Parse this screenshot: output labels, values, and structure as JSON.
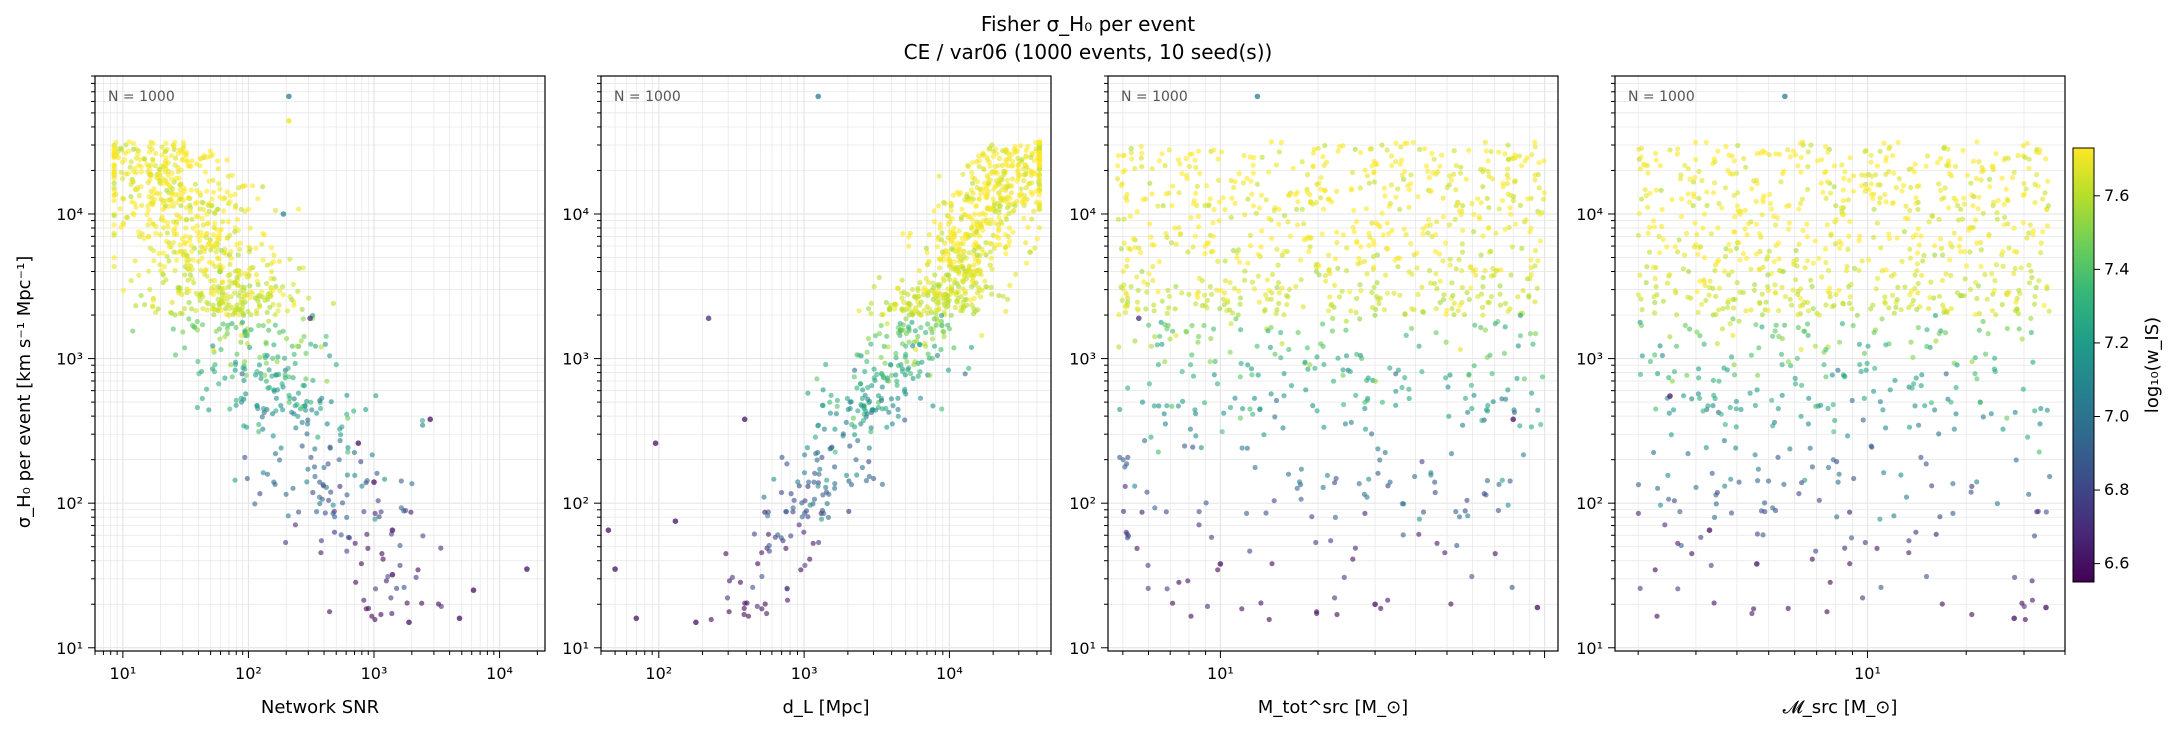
{
  "figure": {
    "title_line1": "Fisher σ_H₀ per event",
    "title_line2": "CE / var06  (1000 events, 10 seed(s))"
  },
  "colors": {
    "viridis": [
      "#440154",
      "#482878",
      "#3e4989",
      "#31688e",
      "#26828e",
      "#1f9e89",
      "#35b779",
      "#6ece58",
      "#b5de2b",
      "#fde725"
    ],
    "grid": "#e6e6e6",
    "marker_alpha": 0.6
  },
  "colorbar": {
    "label": "log₁₀(w_IS)",
    "range": [
      6.55,
      7.73
    ],
    "ticks": [
      6.6,
      6.8,
      7.0,
      7.2,
      7.4,
      7.6
    ]
  },
  "chart_data": [
    {
      "type": "scatter",
      "xlabel": "Network SNR",
      "ylabel": "σ_H₀ per event [km s⁻¹ Mpc⁻¹]",
      "annotation": "N = 1000",
      "xscale": "log",
      "yscale": "log",
      "xlim": [
        6,
        23000
      ],
      "ylim": [
        9.5,
        90000
      ],
      "xticks": [
        10,
        100,
        1000,
        10000
      ],
      "xtick_labels": [
        "10¹",
        "10²",
        "10³",
        "10⁴"
      ],
      "yticks": [
        10,
        100,
        1000,
        10000
      ],
      "ytick_labels": [
        "10¹",
        "10²",
        "10³",
        "10⁴"
      ],
      "grid": true,
      "highlight_points": [
        {
          "x": 210,
          "y": 65000,
          "c": 7.05
        },
        {
          "x": 2800,
          "y": 380,
          "c": 6.6
        },
        {
          "x": 16500,
          "y": 35,
          "c": 6.6
        },
        {
          "x": 6200,
          "y": 25,
          "c": 6.6
        },
        {
          "x": 4800,
          "y": 16,
          "c": 6.6
        },
        {
          "x": 1900,
          "y": 15,
          "c": 6.6
        },
        {
          "x": 1400,
          "y": 65,
          "c": 6.6
        },
        {
          "x": 1400,
          "y": 32,
          "c": 6.6
        },
        {
          "x": 1000,
          "y": 140,
          "c": 6.6
        },
        {
          "x": 750,
          "y": 260,
          "c": 6.6
        },
        {
          "x": 310,
          "y": 1900,
          "c": 6.7
        },
        {
          "x": 190,
          "y": 10000,
          "c": 7.1
        },
        {
          "x": 210,
          "y": 44000,
          "c": 7.7
        }
      ]
    },
    {
      "type": "scatter",
      "xlabel": "d_L [Mpc]",
      "annotation": "N = 1000",
      "xscale": "log",
      "yscale": "log",
      "xlim": [
        40,
        50000
      ],
      "ylim": [
        9.5,
        90000
      ],
      "xticks": [
        100,
        1000,
        10000
      ],
      "xtick_labels": [
        "10²",
        "10³",
        "10⁴"
      ],
      "yticks": [
        10,
        100,
        1000,
        10000
      ],
      "ytick_labels": [
        "10¹",
        "10²",
        "10³",
        "10⁴"
      ],
      "grid": true,
      "highlight_points": [
        {
          "x": 45,
          "y": 65,
          "c": 6.6
        },
        {
          "x": 50,
          "y": 35,
          "c": 6.6
        },
        {
          "x": 70,
          "y": 16,
          "c": 6.6
        },
        {
          "x": 95,
          "y": 260,
          "c": 6.6
        },
        {
          "x": 130,
          "y": 75,
          "c": 6.6
        },
        {
          "x": 180,
          "y": 15,
          "c": 6.6
        },
        {
          "x": 220,
          "y": 1900,
          "c": 6.7
        },
        {
          "x": 390,
          "y": 380,
          "c": 6.6
        },
        {
          "x": 1250,
          "y": 65000,
          "c": 7.05
        }
      ]
    },
    {
      "type": "scatter",
      "xlabel": "M_tot^src [M_⊙]",
      "annotation": "N = 1000",
      "xscale": "log",
      "yscale": "log",
      "xlim": [
        4.5,
        110
      ],
      "ylim": [
        9.5,
        90000
      ],
      "xticks": [
        10
      ],
      "xtick_labels": [
        "10¹"
      ],
      "yticks": [
        10,
        100,
        1000,
        10000
      ],
      "ytick_labels": [
        "10¹",
        "10²",
        "10³",
        "10⁴"
      ],
      "grid": true,
      "highlight_points": [
        {
          "x": 13,
          "y": 65000,
          "c": 7.05
        },
        {
          "x": 5.6,
          "y": 1900,
          "c": 6.7
        },
        {
          "x": 10,
          "y": 38,
          "c": 6.6
        },
        {
          "x": 30,
          "y": 20,
          "c": 6.6
        },
        {
          "x": 80,
          "y": 380,
          "c": 6.6
        },
        {
          "x": 95,
          "y": 19,
          "c": 6.6
        }
      ]
    },
    {
      "type": "scatter",
      "xlabel": "𝓜_src [M_⊙]",
      "annotation": "N = 1000",
      "xscale": "log",
      "yscale": "log",
      "xlim": [
        1.7,
        40
      ],
      "ylim": [
        9.5,
        90000
      ],
      "xticks": [
        10
      ],
      "xtick_labels": [
        "10¹"
      ],
      "yticks": [
        10,
        100,
        1000,
        10000
      ],
      "ytick_labels": [
        "10¹",
        "10²",
        "10³",
        "10⁴"
      ],
      "grid": true,
      "highlight_points": [
        {
          "x": 5.6,
          "y": 65000,
          "c": 7.05
        },
        {
          "x": 2.5,
          "y": 550,
          "c": 6.6
        },
        {
          "x": 3.3,
          "y": 65,
          "c": 6.6
        },
        {
          "x": 4.6,
          "y": 38,
          "c": 6.6
        },
        {
          "x": 28,
          "y": 16,
          "c": 6.6
        },
        {
          "x": 35,
          "y": 19,
          "c": 6.6
        }
      ]
    }
  ]
}
